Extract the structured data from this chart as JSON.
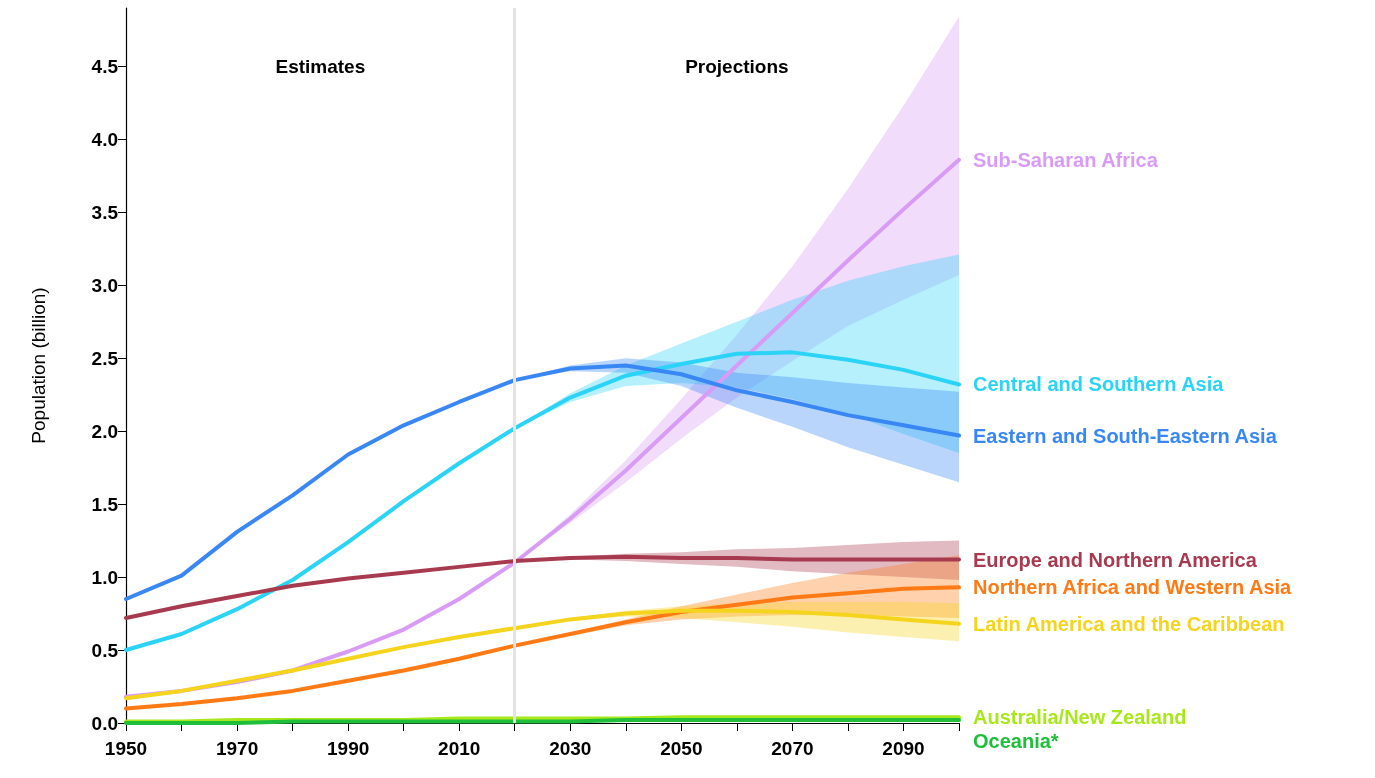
{
  "chart_data": {
    "type": "line",
    "ylabel": "Population (billion)",
    "annotations": [
      "Estimates",
      "Projections"
    ],
    "x": [
      1950,
      1960,
      1970,
      1980,
      1990,
      2000,
      2010,
      2020,
      2030,
      2040,
      2050,
      2060,
      2070,
      2080,
      2090,
      2100
    ],
    "xlim": [
      1950,
      2100
    ],
    "xticks": [
      1950,
      {
        "value": 1960,
        "label": null
      },
      1970,
      {
        "value": 1980,
        "label": null
      },
      1990,
      {
        "value": 2000,
        "label": null
      },
      2010,
      {
        "value": 2020,
        "label": null
      },
      2030,
      {
        "value": 2040,
        "label": null
      },
      2050,
      {
        "value": 2060,
        "label": null
      },
      2070,
      {
        "value": 2080,
        "label": null
      },
      2090,
      {
        "value": 2100,
        "label": null
      }
    ],
    "ylim": [
      0,
      4.9
    ],
    "yticks": [
      {
        "value": 0,
        "label": "0.0"
      },
      0.5,
      {
        "value": 1,
        "label": "1.0"
      },
      1.5,
      {
        "value": 2,
        "label": "2.0"
      },
      2.5,
      {
        "value": 3,
        "label": "3.0"
      },
      3.5,
      {
        "value": 4,
        "label": "4.0"
      },
      4.5
    ],
    "grid": false,
    "legend": false,
    "ref_lines": [
      {
        "axis": "x",
        "value": 2020,
        "color": "#e3e3e3"
      }
    ],
    "series": [
      {
        "name": "Sub-Saharan Africa",
        "color": "#d89bf6",
        "values": [
          0.18,
          0.22,
          0.28,
          0.36,
          0.49,
          0.64,
          0.85,
          1.1,
          1.4,
          1.73,
          2.09,
          2.45,
          2.81,
          3.17,
          3.52,
          3.86
        ],
        "lower": [
          null,
          null,
          null,
          null,
          null,
          null,
          null,
          1.1,
          1.37,
          1.65,
          1.95,
          2.23,
          2.48,
          2.72,
          2.9,
          3.07
        ],
        "upper": [
          null,
          null,
          null,
          null,
          null,
          null,
          null,
          1.1,
          1.43,
          1.8,
          2.22,
          2.66,
          3.13,
          3.66,
          4.23,
          4.84
        ]
      },
      {
        "name": "Central and Southern Asia",
        "color": "#2bd3f7",
        "values": [
          0.5,
          0.61,
          0.78,
          0.98,
          1.24,
          1.52,
          1.78,
          2.02,
          2.23,
          2.38,
          2.46,
          2.53,
          2.54,
          2.49,
          2.42,
          2.32
        ],
        "lower": [
          null,
          null,
          null,
          null,
          null,
          null,
          null,
          2.02,
          2.2,
          2.31,
          2.33,
          2.3,
          2.22,
          2.12,
          1.98,
          1.85
        ],
        "upper": [
          null,
          null,
          null,
          null,
          null,
          null,
          null,
          2.02,
          2.26,
          2.45,
          2.6,
          2.75,
          2.9,
          3.03,
          3.13,
          3.21
        ]
      },
      {
        "name": "Eastern and South-Eastern Asia",
        "color": "#3987f5",
        "values": [
          0.85,
          1.01,
          1.31,
          1.56,
          1.84,
          2.04,
          2.2,
          2.35,
          2.43,
          2.45,
          2.39,
          2.28,
          2.2,
          2.11,
          2.04,
          1.97
        ],
        "lower": [
          null,
          null,
          null,
          null,
          null,
          null,
          null,
          2.35,
          2.41,
          2.4,
          2.31,
          2.16,
          2.03,
          1.89,
          1.77,
          1.65
        ],
        "upper": [
          null,
          null,
          null,
          null,
          null,
          null,
          null,
          2.35,
          2.45,
          2.5,
          2.47,
          2.4,
          2.37,
          2.33,
          2.3,
          2.27
        ]
      },
      {
        "name": "Europe and Northern America",
        "color": "#a83a50",
        "values": [
          0.72,
          0.8,
          0.87,
          0.94,
          0.99,
          1.03,
          1.07,
          1.11,
          1.13,
          1.14,
          1.13,
          1.13,
          1.12,
          1.12,
          1.12,
          1.12
        ],
        "lower": [
          null,
          null,
          null,
          null,
          null,
          null,
          null,
          1.11,
          1.12,
          1.11,
          1.09,
          1.07,
          1.04,
          1.02,
          1.0,
          0.98
        ],
        "upper": [
          null,
          null,
          null,
          null,
          null,
          null,
          null,
          1.11,
          1.14,
          1.16,
          1.17,
          1.19,
          1.2,
          1.22,
          1.24,
          1.25
        ]
      },
      {
        "name": "Northern Africa and Western Asia",
        "color": "#ff7a14",
        "values": [
          0.1,
          0.13,
          0.17,
          0.22,
          0.29,
          0.36,
          0.44,
          0.53,
          0.61,
          0.69,
          0.76,
          0.81,
          0.86,
          0.89,
          0.92,
          0.93
        ],
        "lower": [
          null,
          null,
          null,
          null,
          null,
          null,
          null,
          0.53,
          0.6,
          0.67,
          0.71,
          0.73,
          0.74,
          0.74,
          0.73,
          0.72
        ],
        "upper": [
          null,
          null,
          null,
          null,
          null,
          null,
          null,
          0.53,
          0.62,
          0.71,
          0.8,
          0.88,
          0.96,
          1.03,
          1.09,
          1.15
        ]
      },
      {
        "name": "Latin America and the Caribbean",
        "color": "#f5d41e",
        "values": [
          0.17,
          0.22,
          0.29,
          0.36,
          0.44,
          0.52,
          0.59,
          0.65,
          0.71,
          0.75,
          0.77,
          0.77,
          0.76,
          0.74,
          0.71,
          0.68
        ],
        "lower": [
          null,
          null,
          null,
          null,
          null,
          null,
          null,
          0.65,
          0.7,
          0.73,
          0.72,
          0.69,
          0.66,
          0.62,
          0.59,
          0.56
        ],
        "upper": [
          null,
          null,
          null,
          null,
          null,
          null,
          null,
          0.65,
          0.72,
          0.77,
          0.8,
          0.82,
          0.83,
          0.83,
          0.83,
          0.82
        ]
      },
      {
        "name": "Australia/New Zealand",
        "color": "#a8e81a",
        "values": [
          0.01,
          0.01,
          0.02,
          0.02,
          0.02,
          0.02,
          0.03,
          0.03,
          0.03,
          0.03,
          0.04,
          0.04,
          0.04,
          0.04,
          0.04,
          0.04
        ]
      },
      {
        "name": "Oceania*",
        "color": "#1fbf3c",
        "values": [
          0.0,
          0.0,
          0.0,
          0.01,
          0.01,
          0.01,
          0.01,
          0.01,
          0.01,
          0.02,
          0.02,
          0.02,
          0.02,
          0.02,
          0.02,
          0.02
        ]
      }
    ]
  }
}
